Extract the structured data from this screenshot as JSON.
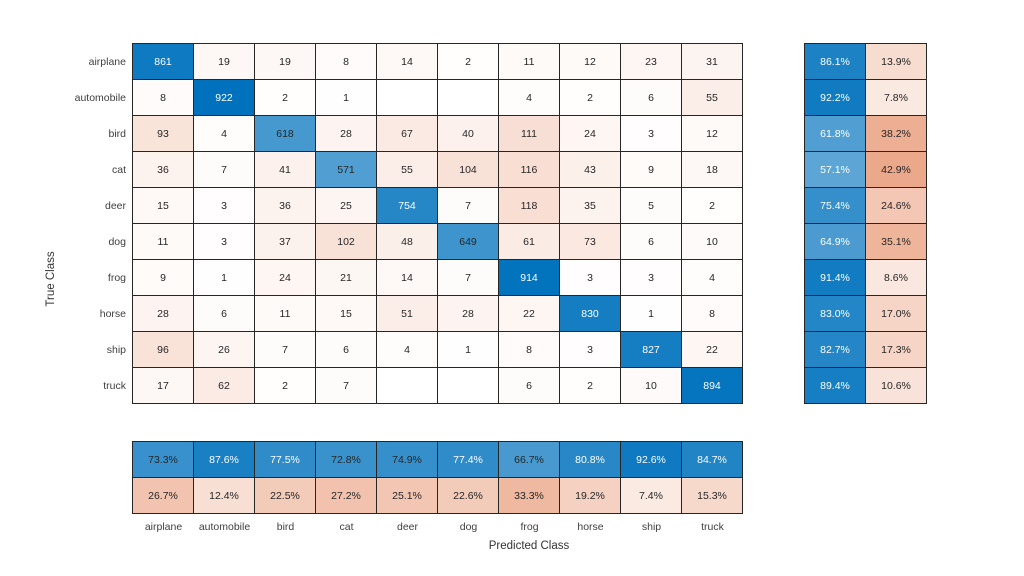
{
  "chart_data": {
    "type": "heatmap",
    "variant": "confusion-matrix",
    "xlabel": "Predicted Class",
    "ylabel": "True Class",
    "classes": [
      "airplane",
      "automobile",
      "bird",
      "cat",
      "deer",
      "dog",
      "frog",
      "horse",
      "ship",
      "truck"
    ],
    "matrix": [
      [
        861,
        19,
        19,
        8,
        14,
        2,
        11,
        12,
        23,
        31
      ],
      [
        8,
        922,
        2,
        1,
        null,
        null,
        4,
        2,
        6,
        55
      ],
      [
        93,
        4,
        618,
        28,
        67,
        40,
        111,
        24,
        3,
        12
      ],
      [
        36,
        7,
        41,
        571,
        55,
        104,
        116,
        43,
        9,
        18
      ],
      [
        15,
        3,
        36,
        25,
        754,
        7,
        118,
        35,
        5,
        2
      ],
      [
        11,
        3,
        37,
        102,
        48,
        649,
        61,
        73,
        6,
        10
      ],
      [
        9,
        1,
        24,
        21,
        14,
        7,
        914,
        3,
        3,
        4
      ],
      [
        28,
        6,
        11,
        15,
        51,
        28,
        22,
        830,
        1,
        8
      ],
      [
        96,
        26,
        7,
        6,
        4,
        1,
        8,
        3,
        827,
        22
      ],
      [
        17,
        62,
        2,
        7,
        null,
        null,
        6,
        2,
        10,
        894
      ]
    ],
    "row_summary": {
      "true_positive_rate": [
        86.1,
        92.2,
        61.8,
        57.1,
        75.4,
        64.9,
        91.4,
        83.0,
        82.7,
        89.4
      ],
      "false_negative_rate": [
        13.9,
        7.8,
        38.2,
        42.9,
        24.6,
        35.1,
        8.6,
        17.0,
        17.3,
        10.6
      ]
    },
    "col_summary": {
      "positive_predictive_value": [
        73.3,
        87.6,
        77.5,
        72.8,
        74.9,
        77.4,
        66.7,
        80.8,
        92.6,
        84.7
      ],
      "false_discovery_rate": [
        26.7,
        12.4,
        22.5,
        27.2,
        25.1,
        22.6,
        33.3,
        19.2,
        7.4,
        15.3
      ]
    },
    "percent_suffix": "%",
    "value_max": 922,
    "color_gamma": 0.8,
    "colors": {
      "diagonal": "#0072BD",
      "off_diagonal": "#D95319",
      "cell_text_dark": "#262626",
      "cell_text_light": "#FFFFFF",
      "border": "#262626",
      "background": "#FFFFFF",
      "empty_cell": "#FFFFFF"
    },
    "legend": "none",
    "grid": "cell-borders"
  }
}
